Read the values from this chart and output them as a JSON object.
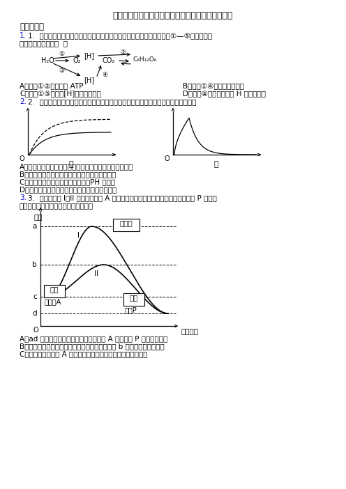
{
  "title": "河南省周口中英文学校高中生物必修一测试题及答案",
  "section1": "一、选择题",
  "q1_line1": "1.  图是水稻叶肉细胞光合作用与有氧呼吸过程中的物质变化图解，其中①—⑤表示过程，",
  "q1_line2": "相关叙述错误的是（  ）",
  "q1_optA": "A．过程①②都能合成 ATP",
  "q1_optB": "B．过程①④可以不同时进行",
  "q1_optC": "C．过程①⑤产生的[H]不是同一物质",
  "q1_optD": "D．过程④产生的水中的 H 还来自于水",
  "q2_line1": "2.  下图甲、乙分别表示在不同条件下酶促反应中有关物质的变化，下列叙述正确的是",
  "q2_optA": "A．图甲可表示酶量增加前后，生成物量与反应时间的关系",
  "q2_optB": "B．图甲中虚线、实线可表示酶的作用具有专一性",
  "q2_optC": "C．图乙能用来表示酶活性与温度、PH 的关系",
  "q2_optD": "D．图乙能用来表示生成物浓度与反应时间的关系",
  "q3_line1": "3.  下图中曲线 I、II 分别表示物质 A 在无如化剑条件和有酵如化条件下生成物质 P 所需能",
  "q3_line2": "量的变化过程，下列相关叙述正确的是",
  "q3_optA": "A．ad 段表示在无如化剑的条件下，物质 A 生成物质 P 需要的活化能",
  "q3_optB": "B．若将酵如化改为无机厂如化剑如化该反应，则 b 在纵轴上将向下移动",
  "q3_optC": "C．若仅增加反应物 A 的量，则图中曲线的原有形状均发生改变",
  "bg": "#ffffff"
}
